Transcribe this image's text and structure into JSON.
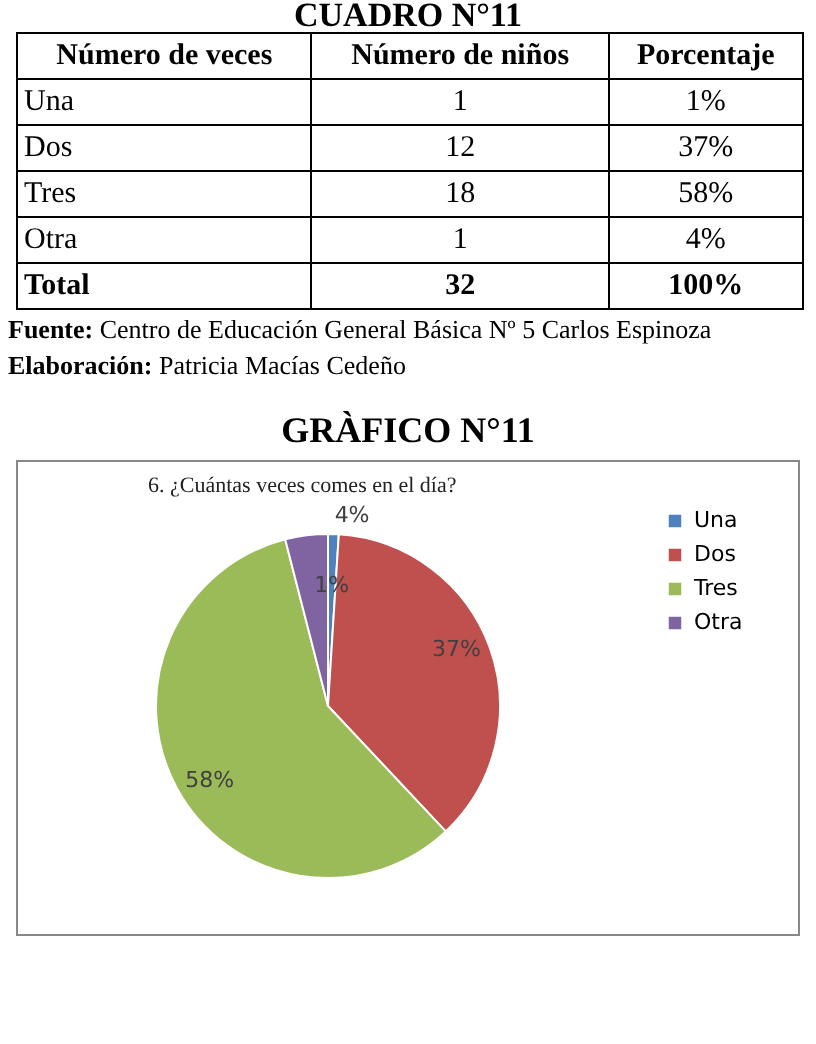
{
  "chart_data": [
    {
      "type": "other",
      "title": "CUADRO N°11",
      "annotations": [
        "Número de veces",
        "Número de niños",
        "Porcentaje",
        "Una",
        "1",
        "1%",
        "Dos",
        "12",
        "37%",
        "Tres",
        "18",
        "58%",
        "Otra",
        "1",
        "4%",
        "Total",
        "32",
        "100%",
        "Fuente: Centro de Educación General Básica Nº 5 Carlos Espinoza",
        "Elaboración: Patricia Macías Cedeño"
      ]
    },
    {
      "type": "pie",
      "title": "GRÀFICO N°11",
      "subtitle": "6.      ¿Cuántas veces comes en el día?",
      "categories": [
        "Una",
        "Dos",
        "Tres",
        "Otra"
      ],
      "values": [
        1,
        37,
        58,
        4
      ],
      "colors": [
        "#4f81bd",
        "#c0504d",
        "#9bbb59",
        "#8064a2"
      ],
      "value_labels": [
        "1%",
        "37%",
        "58%",
        "4%"
      ],
      "legend": "right"
    }
  ]
}
